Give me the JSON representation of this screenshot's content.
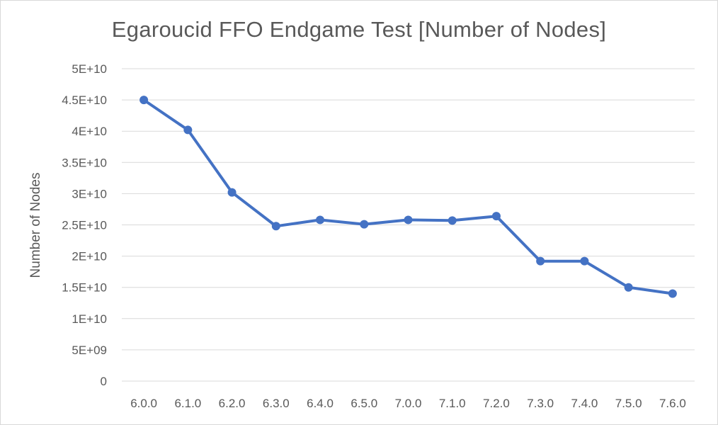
{
  "chart_data": {
    "type": "line",
    "title": "Egaroucid FFO Endgame Test [Number of Nodes]",
    "xlabel": "",
    "ylabel": "Number of Nodes",
    "categories": [
      "6.0.0",
      "6.1.0",
      "6.2.0",
      "6.3.0",
      "6.4.0",
      "6.5.0",
      "7.0.0",
      "7.1.0",
      "7.2.0",
      "7.3.0",
      "7.4.0",
      "7.5.0",
      "7.6.0"
    ],
    "series": [
      {
        "values": [
          45000000000,
          40200000000,
          30200000000,
          24800000000,
          25800000000,
          25100000000,
          25800000000,
          25700000000,
          26400000000,
          19200000000,
          19200000000,
          15000000000,
          14000000000
        ]
      }
    ],
    "ylim": [
      0,
      50000000000
    ],
    "y_ticks": [
      0,
      5000000000,
      10000000000,
      15000000000,
      20000000000,
      25000000000,
      30000000000,
      35000000000,
      40000000000,
      45000000000,
      50000000000
    ],
    "y_tick_labels": [
      "0",
      "5E+09",
      "1E+10",
      "1.5E+10",
      "2E+10",
      "2.5E+10",
      "3E+10",
      "3.5E+10",
      "4E+10",
      "4.5E+10",
      "5E+10"
    ],
    "grid": true,
    "legend": "none",
    "colors": {
      "line": "#4472c4",
      "grid": "#d9d9d9",
      "text": "#595959"
    }
  }
}
